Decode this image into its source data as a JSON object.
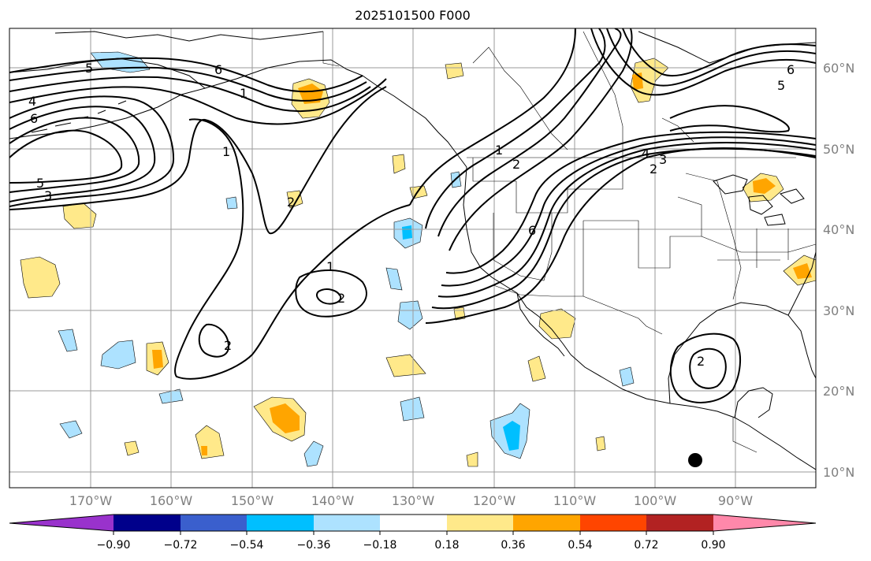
{
  "title": "2025101500 F000",
  "lat_labels": [
    "60°N",
    "50°N",
    "40°N",
    "30°N",
    "20°N",
    "10°N"
  ],
  "lon_labels": [
    "170°W",
    "160°W",
    "150°W",
    "140°W",
    "130°W",
    "120°W",
    "110°W",
    "100°W",
    "90°W"
  ],
  "colorbar": {
    "ticks": [
      "−0.90",
      "−0.72",
      "−0.54",
      "−0.36",
      "−0.18",
      "0.18",
      "0.36",
      "0.54",
      "0.72",
      "0.90"
    ],
    "colors": [
      "#9932cc",
      "#00008b",
      "#3a5fcd",
      "#00bfff",
      "#ade2ff",
      "#ffffff",
      "#ffe98a",
      "#ffa500",
      "#ff4500",
      "#b22222",
      "#ff88aa"
    ]
  },
  "contour_labels": [
    "5",
    "6",
    "4",
    "6",
    "5",
    "3",
    "1",
    "2",
    "1",
    "2",
    "2",
    "6",
    "5",
    "1",
    "2",
    "3",
    "4",
    "2",
    "6",
    "1",
    "2"
  ],
  "colors": {
    "contour": "#000000",
    "coast": "#000000",
    "grid": "#9a9a9a",
    "yellow": "#ffe98a",
    "orange": "#ffa500",
    "lightblue": "#ade2ff",
    "cyan": "#00bfff",
    "marker": "#000000"
  }
}
